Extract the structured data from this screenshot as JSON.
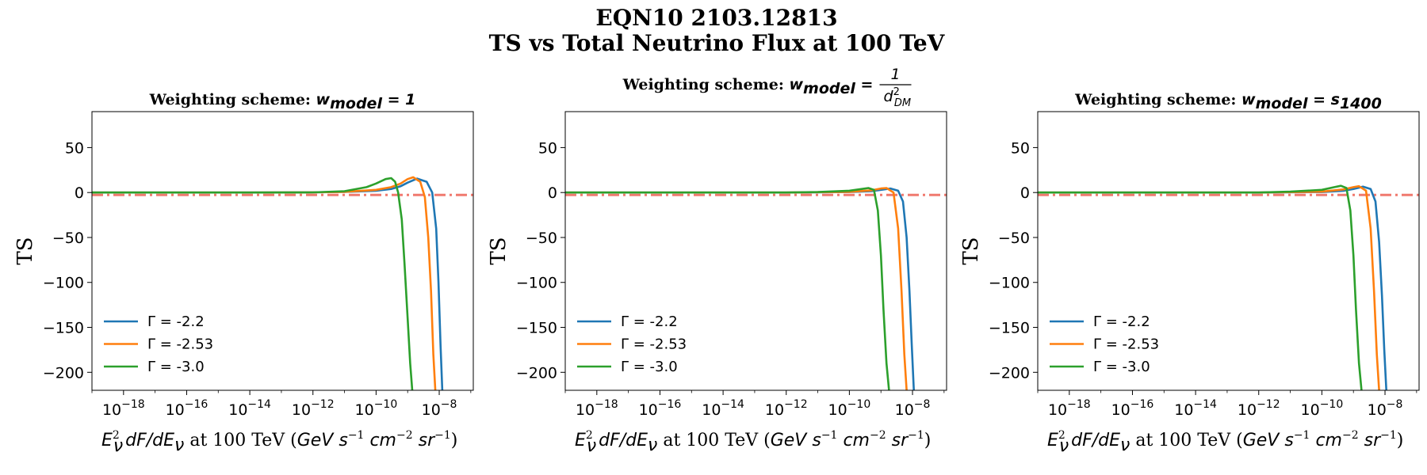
{
  "figure": {
    "suptitle_line1": "EQN10 2103.12813",
    "suptitle_line2": "TS vs Total Neutrino Flux at 100 TeV"
  },
  "chart_data": [
    {
      "type": "line",
      "title": "Weighting scheme:",
      "title_math": "w_model = 1",
      "xlabel": "E_ν² dF/dE_ν at 100 TeV (GeV s⁻¹ cm⁻² sr⁻¹)",
      "ylabel": "TS",
      "xscale": "log",
      "xlim": [
        1e-19,
        1.2e-07
      ],
      "ylim": [
        -220,
        90
      ],
      "xticks": [
        "10^-18",
        "10^-16",
        "10^-14",
        "10^-12",
        "10^-10",
        "10^-8"
      ],
      "yticks": [
        50,
        0,
        -50,
        -100,
        -150,
        -200
      ],
      "grid": false,
      "legend_position": "lower-left",
      "reference_line": {
        "y": -2.71,
        "style": "dash-dot",
        "color": "#f07a6f"
      },
      "series": [
        {
          "name": "Γ = -2.2",
          "color": "#1f77b4",
          "x": [
            1e-19,
            1e-14,
            1e-12,
            1e-11,
            1e-10,
            3e-10,
            6e-10,
            1e-09,
            2e-09,
            4e-09,
            6e-09,
            8e-09,
            9.5e-09,
            1.1e-08,
            1.25e-08
          ],
          "y": [
            0,
            0,
            0.2,
            0.6,
            2,
            4,
            7,
            11,
            15.5,
            12,
            0,
            -40,
            -100,
            -170,
            -220
          ]
        },
        {
          "name": "Γ = -2.53",
          "color": "#ff7f0e",
          "x": [
            1e-19,
            1e-14,
            1e-12,
            1e-11,
            1e-10,
            3e-10,
            6e-10,
            1e-09,
            1.5e-09,
            2.5e-09,
            3.5e-09,
            4.5e-09,
            5.5e-09,
            6.5e-09,
            7.5e-09
          ],
          "y": [
            0,
            0,
            0.2,
            0.8,
            3,
            6,
            10,
            15,
            17,
            12,
            -5,
            -50,
            -110,
            -180,
            -220
          ]
        },
        {
          "name": "Γ = -3.0",
          "color": "#2ca02c",
          "x": [
            1e-19,
            1e-14,
            1e-12,
            1e-11,
            5e-11,
            1e-10,
            2e-10,
            3e-10,
            4e-10,
            5e-10,
            6.5e-10,
            8e-10,
            1e-09,
            1.2e-09,
            1.4e-09
          ],
          "y": [
            0,
            0,
            0.2,
            1.5,
            6,
            10,
            15,
            16,
            12,
            0,
            -30,
            -80,
            -140,
            -190,
            -220
          ]
        }
      ]
    },
    {
      "type": "line",
      "title": "Weighting scheme:",
      "title_math": "w_model = 1 / d_DM²",
      "xlabel": "E_ν² dF/dE_ν at 100 TeV (GeV s⁻¹ cm⁻² sr⁻¹)",
      "ylabel": "TS",
      "xscale": "log",
      "xlim": [
        1e-19,
        1.2e-07
      ],
      "ylim": [
        -220,
        90
      ],
      "xticks": [
        "10^-18",
        "10^-16",
        "10^-14",
        "10^-12",
        "10^-10",
        "10^-8"
      ],
      "yticks": [
        50,
        0,
        -50,
        -100,
        -150,
        -200
      ],
      "grid": false,
      "legend_position": "lower-left",
      "reference_line": {
        "y": -2.71,
        "style": "dash-dot",
        "color": "#f07a6f"
      },
      "series": [
        {
          "name": "Γ = -2.2",
          "color": "#1f77b4",
          "x": [
            1e-19,
            1e-12,
            1e-10,
            5e-10,
            1e-09,
            2e-09,
            3.5e-09,
            5e-09,
            6.5e-09,
            8e-09,
            9.5e-09,
            1.1e-08
          ],
          "y": [
            0,
            0,
            0.5,
            1.5,
            3,
            4.5,
            2,
            -10,
            -50,
            -110,
            -170,
            -220
          ]
        },
        {
          "name": "Γ = -2.53",
          "color": "#ff7f0e",
          "x": [
            1e-19,
            1e-12,
            1e-10,
            5e-10,
            1e-09,
            1.5e-09,
            2.5e-09,
            3.5e-09,
            4.5e-09,
            5.5e-09,
            6.5e-09
          ],
          "y": [
            0,
            0,
            0.8,
            2.5,
            4.5,
            5,
            0,
            -40,
            -110,
            -180,
            -220
          ]
        },
        {
          "name": "Γ = -3.0",
          "color": "#2ca02c",
          "x": [
            1e-19,
            1e-12,
            1e-11,
            1e-10,
            2.5e-10,
            4e-10,
            6e-10,
            8e-10,
            1e-09,
            1.2e-09,
            1.5e-09,
            1.8e-09
          ],
          "y": [
            0,
            0,
            0.5,
            2,
            4,
            5,
            3,
            -20,
            -70,
            -130,
            -190,
            -220
          ]
        }
      ]
    },
    {
      "type": "line",
      "title": "Weighting scheme:",
      "title_math": "w_model = s_1400",
      "xlabel": "E_ν² dF/dE_ν at 100 TeV (GeV s⁻¹ cm⁻² sr⁻¹)",
      "ylabel": "TS",
      "xscale": "log",
      "xlim": [
        1e-19,
        1.2e-07
      ],
      "ylim": [
        -220,
        90
      ],
      "xticks": [
        "10^-18",
        "10^-16",
        "10^-14",
        "10^-12",
        "10^-10",
        "10^-8"
      ],
      "yticks": [
        50,
        0,
        -50,
        -100,
        -150,
        -200
      ],
      "grid": false,
      "legend_position": "lower-left",
      "reference_line": {
        "y": -2.71,
        "style": "dash-dot",
        "color": "#f07a6f"
      },
      "series": [
        {
          "name": "Γ = -2.2",
          "color": "#1f77b4",
          "x": [
            1e-19,
            1e-12,
            1e-10,
            5e-10,
            1e-09,
            2e-09,
            3.5e-09,
            5e-09,
            6.5e-09,
            8e-09,
            9.5e-09,
            1.1e-08
          ],
          "y": [
            0,
            0,
            0.5,
            2,
            4,
            6.5,
            4,
            -10,
            -55,
            -115,
            -175,
            -220
          ]
        },
        {
          "name": "Γ = -2.53",
          "color": "#ff7f0e",
          "x": [
            1e-19,
            1e-12,
            1e-10,
            5e-10,
            1e-09,
            1.5e-09,
            2.5e-09,
            3.5e-09,
            4.5e-09,
            5.5e-09,
            6.5e-09
          ],
          "y": [
            0,
            0,
            1,
            3.5,
            6,
            7,
            2,
            -40,
            -110,
            -180,
            -220
          ]
        },
        {
          "name": "Γ = -3.0",
          "color": "#2ca02c",
          "x": [
            1e-19,
            1e-12,
            1e-11,
            1e-10,
            2.5e-10,
            4e-10,
            6e-10,
            8e-10,
            1e-09,
            1.2e-09,
            1.5e-09,
            1.8e-09
          ],
          "y": [
            0,
            0,
            1,
            3,
            6,
            7.5,
            5,
            -20,
            -70,
            -130,
            -190,
            -220
          ]
        }
      ]
    }
  ]
}
